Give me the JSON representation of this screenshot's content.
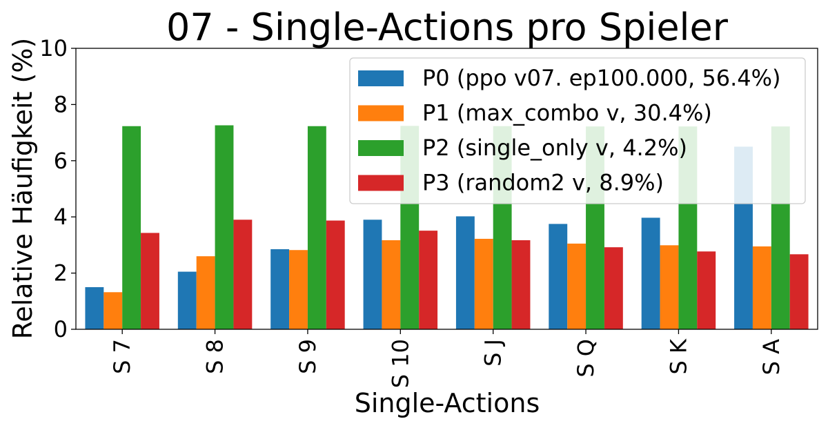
{
  "chart_data": {
    "type": "bar",
    "title": "07 - Single-Actions pro Spieler",
    "xlabel": "Single-Actions",
    "ylabel": "Relative Häufigkeit (%)",
    "categories": [
      "S 7",
      "S 8",
      "S 9",
      "S 10",
      "S J",
      "S Q",
      "S K",
      "S A"
    ],
    "ylim": [
      0,
      10
    ],
    "yticks": [
      "0",
      "2",
      "4",
      "6",
      "8",
      "10"
    ],
    "grid": false,
    "legend_position": "top-right",
    "series": [
      {
        "name": "P0 (ppo v07. ep100.000, 56.4%)",
        "color": "#1f77b4",
        "values": [
          1.5,
          2.05,
          2.85,
          3.9,
          4.02,
          3.75,
          3.97,
          6.5
        ]
      },
      {
        "name": "P1 (max_combo v, 30.4%)",
        "color": "#ff7f0e",
        "values": [
          1.32,
          2.6,
          2.82,
          3.17,
          3.22,
          3.05,
          2.99,
          2.95
        ]
      },
      {
        "name": "P2 (single_only v, 4.2%)",
        "color": "#2ca02c",
        "values": [
          7.23,
          7.26,
          7.23,
          7.24,
          7.23,
          7.22,
          7.22,
          7.22
        ]
      },
      {
        "name": "P3 (random2 v, 8.9%)",
        "color": "#d62728",
        "values": [
          3.43,
          3.9,
          3.87,
          3.51,
          3.17,
          2.92,
          2.77,
          2.67
        ]
      }
    ]
  }
}
